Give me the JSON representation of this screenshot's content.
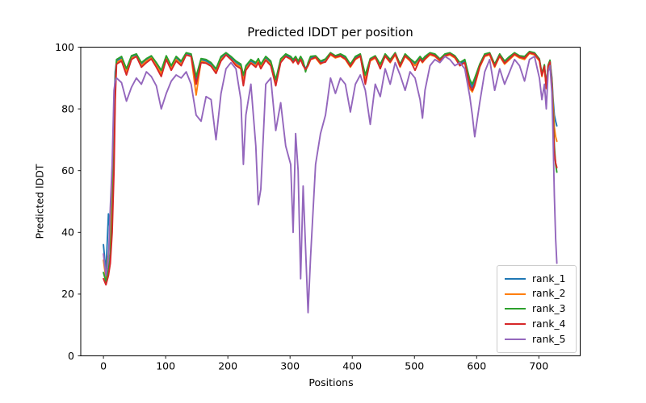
{
  "chart_data": {
    "type": "line",
    "title": "Predicted lDDT per position",
    "xlabel": "Positions",
    "ylabel": "Predicted lDDT",
    "xlim": [
      -36.5,
      766.5
    ],
    "ylim": [
      0,
      100
    ],
    "xticks": [
      0,
      100,
      200,
      300,
      400,
      500,
      600,
      700
    ],
    "yticks": [
      0,
      20,
      40,
      60,
      80,
      100
    ],
    "grid": false,
    "legend_position": "lower right",
    "x": [
      0,
      4,
      8,
      11,
      14,
      17,
      19,
      21,
      29,
      37,
      45,
      53,
      61,
      69,
      77,
      85,
      93,
      101,
      109,
      117,
      125,
      133,
      141,
      149,
      157,
      165,
      173,
      181,
      189,
      197,
      205,
      213,
      221,
      225,
      229,
      237,
      245,
      249,
      253,
      261,
      269,
      277,
      285,
      293,
      301,
      305,
      309,
      313,
      317,
      321,
      325,
      329,
      333,
      341,
      349,
      357,
      365,
      373,
      381,
      389,
      397,
      405,
      413,
      421,
      429,
      437,
      445,
      453,
      461,
      469,
      477,
      485,
      493,
      501,
      509,
      513,
      517,
      525,
      533,
      541,
      549,
      557,
      565,
      573,
      581,
      589,
      593,
      597,
      605,
      613,
      621,
      629,
      637,
      645,
      653,
      661,
      669,
      677,
      685,
      693,
      701,
      705,
      709,
      712,
      715,
      718,
      721,
      723,
      725,
      727,
      729
    ],
    "series": [
      {
        "name": "rank_1",
        "color": "#1f77b4",
        "values": [
          36,
          27,
          46,
          40,
          55,
          80,
          92,
          95.5,
          96.5,
          92.5,
          97,
          97.5,
          94.5,
          96,
          97,
          94.5,
          92,
          97,
          93.5,
          96.5,
          95,
          98,
          97.5,
          89.5,
          96,
          95.5,
          94.5,
          92.5,
          96.5,
          98,
          96.5,
          95,
          94,
          90.5,
          93.5,
          95.5,
          94.5,
          96,
          94,
          96.5,
          95,
          89,
          96,
          97.5,
          96.5,
          95.5,
          96.5,
          95,
          96.5,
          95,
          93,
          94.5,
          96.5,
          97,
          95,
          96,
          98,
          97,
          97.5,
          96.5,
          94,
          96.5,
          97.5,
          90.5,
          96,
          97,
          94,
          97.5,
          95.5,
          98,
          94,
          97.5,
          96,
          94.5,
          96.5,
          95.5,
          96.5,
          98,
          97.5,
          96,
          97.5,
          98,
          97,
          94.5,
          95.5,
          88.5,
          87,
          89,
          94,
          97.5,
          98,
          94,
          97.5,
          95,
          96.5,
          98,
          97,
          96.5,
          98.5,
          98,
          96,
          91,
          94,
          87,
          94,
          95.5,
          90,
          83,
          78,
          76,
          74.5
        ]
      },
      {
        "name": "rank_2",
        "color": "#ff7f0e",
        "values": [
          31,
          25,
          33,
          38,
          50,
          72,
          89,
          95,
          96,
          92,
          96.5,
          97,
          94,
          95.5,
          96.5,
          94,
          91.5,
          96.5,
          93,
          96,
          94.5,
          97.5,
          97,
          84.5,
          95.5,
          95,
          94,
          92,
          96,
          97.5,
          96,
          94.5,
          93.5,
          89,
          93,
          95,
          94,
          95.5,
          93.5,
          96,
          94.5,
          88.5,
          95.5,
          97,
          96,
          95,
          96,
          94.5,
          96,
          94.5,
          92.5,
          94,
          96,
          96.5,
          94.5,
          95.5,
          97.5,
          96.5,
          97,
          96,
          93.5,
          96,
          97,
          89.5,
          95.5,
          96.5,
          93.5,
          97,
          95,
          97.5,
          93.5,
          97,
          95.5,
          94,
          96,
          95,
          96,
          97.5,
          97,
          95.5,
          97,
          97.5,
          96.5,
          94,
          95,
          86.5,
          85.5,
          87.5,
          93.5,
          97,
          97.5,
          93.5,
          97,
          94.5,
          96,
          97.5,
          96.5,
          96,
          98,
          97.5,
          95.5,
          90.5,
          93.5,
          86.5,
          93.5,
          95,
          89,
          81,
          74,
          71,
          69.5
        ]
      },
      {
        "name": "rank_3",
        "color": "#2ca02c",
        "values": [
          27,
          24,
          28,
          33,
          45,
          66,
          86,
          96,
          97,
          93,
          97.2,
          97.8,
          95,
          96.3,
          97.2,
          95,
          92.5,
          97.2,
          94,
          97,
          95.5,
          98.2,
          97.8,
          90.5,
          96.3,
          96,
          95,
          93,
          97,
          98.2,
          97,
          95.5,
          94.5,
          91,
          94,
          96,
          95,
          96.3,
          94.5,
          97,
          95.5,
          89.5,
          96.2,
          97.8,
          97,
          96,
          97,
          95.5,
          97,
          95.5,
          92,
          95,
          97,
          97.2,
          95.5,
          96.2,
          98.2,
          97.2,
          97.8,
          97,
          94.5,
          97,
          97.8,
          91,
          96.3,
          97.2,
          94.5,
          97.8,
          96,
          98.2,
          94.5,
          97.8,
          96.3,
          95,
          97,
          96,
          97,
          98.2,
          97.8,
          96.2,
          97.8,
          98.2,
          97.2,
          95,
          96,
          89.5,
          88,
          90,
          94.5,
          97.8,
          98.2,
          94.5,
          97.8,
          95.5,
          97,
          98.2,
          97.2,
          97,
          98.6,
          98.2,
          96.2,
          91.5,
          94.3,
          87.5,
          94.2,
          95.8,
          88,
          78,
          68,
          62,
          59.5
        ]
      },
      {
        "name": "rank_4",
        "color": "#d62728",
        "values": [
          25,
          23,
          26,
          30,
          40,
          60,
          83,
          94.5,
          95.5,
          91,
          96,
          97,
          93.5,
          95,
          96.2,
          93.5,
          90.5,
          96,
          92.5,
          95.5,
          94,
          97.5,
          97,
          88,
          95,
          94.8,
          93.8,
          91.5,
          95.5,
          97.5,
          96,
          94,
          93,
          87.5,
          92.5,
          94.8,
          93.5,
          95,
          93,
          95.8,
          94,
          87.5,
          95,
          97,
          96.2,
          95,
          96.2,
          94.5,
          96,
          94,
          92.8,
          94,
          96,
          96.8,
          94.8,
          95.2,
          97.8,
          96.8,
          97.2,
          96.2,
          93.8,
          96.2,
          97.2,
          88,
          95.8,
          96.8,
          93,
          97.2,
          95.2,
          97.8,
          93.8,
          97.2,
          95.8,
          92.5,
          96.2,
          95.2,
          96.2,
          97.8,
          97.2,
          95.8,
          97.2,
          97.8,
          96.8,
          94,
          95,
          87.5,
          86,
          88,
          93.8,
          97.2,
          97.8,
          93.8,
          97.2,
          94.8,
          96.3,
          97.8,
          96.8,
          96.4,
          98.2,
          97.8,
          95.8,
          90.8,
          93.8,
          86.8,
          93.8,
          95.2,
          87,
          76,
          66,
          62.5,
          61
        ]
      },
      {
        "name": "rank_5",
        "color": "#9467bd",
        "values": [
          33,
          26,
          31,
          48,
          62,
          86,
          89,
          90,
          88.5,
          82.5,
          87,
          90,
          88,
          92,
          90.5,
          87.5,
          80,
          85,
          89,
          91,
          90,
          92,
          88,
          78,
          76,
          84,
          83,
          70,
          85,
          93,
          95,
          93,
          83,
          62,
          78,
          88,
          68,
          49,
          54,
          88,
          90,
          73,
          82,
          68,
          62,
          40,
          72,
          60,
          25,
          55,
          35,
          14,
          32,
          62,
          72,
          78,
          90,
          85,
          90,
          88,
          79,
          88,
          91,
          86,
          75,
          88,
          84,
          93,
          88,
          95,
          91,
          86,
          92,
          90,
          83,
          77,
          86,
          94,
          96,
          95,
          97,
          96,
          94,
          95,
          93,
          84,
          78,
          71,
          82,
          92,
          96,
          86,
          93,
          88,
          92,
          96,
          94,
          89,
          96,
          97,
          90,
          83,
          88,
          80,
          92,
          94,
          85,
          70,
          52,
          38,
          30
        ]
      }
    ]
  }
}
